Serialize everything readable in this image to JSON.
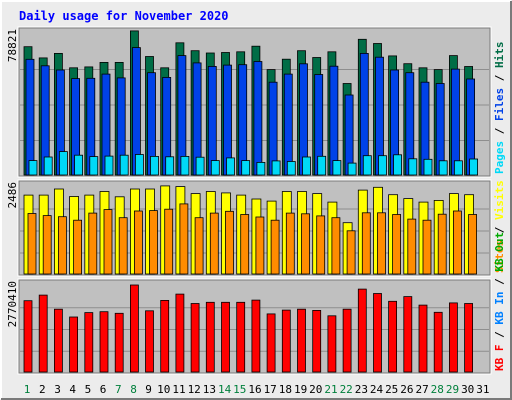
{
  "title": "Daily usage for November 2020",
  "x_labels": [
    "1",
    "2",
    "3",
    "4",
    "5",
    "6",
    "7",
    "8",
    "9",
    "10",
    "11",
    "12",
    "13",
    "14",
    "15",
    "16",
    "17",
    "18",
    "19",
    "20",
    "21",
    "22",
    "23",
    "24",
    "25",
    "26",
    "27",
    "28",
    "29",
    "30",
    "31"
  ],
  "weekend_days": [
    1,
    7,
    8,
    14,
    15,
    21,
    22,
    28,
    29
  ],
  "colors": {
    "background": "#ececec",
    "frame_light": "#ffffff",
    "frame_dark": "#7a7a7a",
    "plot_bg": "#c0c0c0",
    "grid": "#8e8e8e",
    "title_text": "#0000ff",
    "hits": "#006d46",
    "files": "#0042e8",
    "pages": "#00d9f7",
    "visits": "#ffff00",
    "sites": "#ff8c00",
    "kbout": "#00aa00",
    "kbin": "#0080ff",
    "kbf": "#ff0000",
    "weekday_label": "#000000",
    "weekend_label": "#00803c"
  },
  "chart_data": [
    {
      "type": "bar",
      "ymax_label": "78821",
      "ylim": [
        0,
        78821
      ],
      "legend": [
        "Pages",
        "Files",
        "Hits"
      ],
      "categories": [
        "1",
        "2",
        "3",
        "4",
        "5",
        "6",
        "7",
        "8",
        "9",
        "10",
        "11",
        "12",
        "13",
        "14",
        "15",
        "16",
        "17",
        "18",
        "19",
        "20",
        "21",
        "22",
        "23",
        "24",
        "25",
        "26",
        "27",
        "28",
        "29",
        "30",
        "31"
      ],
      "series": [
        {
          "name": "Hits",
          "values": [
            71200,
            65000,
            67500,
            59500,
            60000,
            62500,
            62500,
            80000,
            65800,
            59500,
            73400,
            69000,
            67700,
            68000,
            68400,
            71500,
            58500,
            64300,
            69000,
            65200,
            68400,
            50800,
            75300,
            73000,
            66100,
            61800,
            59500,
            58500,
            66300,
            60200,
            0
          ]
        },
        {
          "name": "Files",
          "values": [
            64200,
            60600,
            58300,
            53500,
            53700,
            56000,
            53900,
            70700,
            56800,
            54200,
            66300,
            62200,
            60300,
            61000,
            61200,
            63000,
            51500,
            56000,
            61700,
            55800,
            60400,
            44400,
            67500,
            65400,
            58300,
            56800,
            51500,
            50800,
            58800,
            53300,
            0
          ]
        },
        {
          "name": "Pages",
          "values": [
            8000,
            10000,
            13000,
            11000,
            10200,
            10500,
            11000,
            11400,
            10300,
            10100,
            10300,
            9900,
            8000,
            9500,
            8000,
            7000,
            7800,
            7500,
            10000,
            10400,
            8000,
            6600,
            10700,
            10700,
            11200,
            9000,
            8700,
            7900,
            7900,
            8900,
            0
          ]
        }
      ]
    },
    {
      "type": "bar",
      "ymax_label": "2486",
      "ylim": [
        0,
        2486
      ],
      "legend": [
        "Sites",
        "Visits"
      ],
      "categories": [
        "1",
        "2",
        "3",
        "4",
        "5",
        "6",
        "7",
        "8",
        "9",
        "10",
        "11",
        "12",
        "13",
        "14",
        "15",
        "16",
        "17",
        "18",
        "19",
        "20",
        "21",
        "22",
        "23",
        "24",
        "25",
        "26",
        "27",
        "28",
        "29",
        "30",
        "31"
      ],
      "series": [
        {
          "name": "Visits",
          "values": [
            2230,
            2230,
            2400,
            2190,
            2230,
            2330,
            2180,
            2400,
            2400,
            2490,
            2470,
            2270,
            2330,
            2290,
            2230,
            2120,
            2060,
            2330,
            2330,
            2270,
            2030,
            1450,
            2370,
            2450,
            2240,
            2130,
            2030,
            2080,
            2270,
            2240,
            0
          ]
        },
        {
          "name": "Sites",
          "values": [
            1710,
            1650,
            1620,
            1520,
            1720,
            1820,
            1590,
            1780,
            1790,
            1830,
            1980,
            1590,
            1720,
            1770,
            1680,
            1610,
            1520,
            1720,
            1700,
            1640,
            1590,
            1220,
            1730,
            1730,
            1680,
            1550,
            1520,
            1690,
            1780,
            1680,
            0
          ]
        }
      ]
    },
    {
      "type": "bar",
      "ymax_label": "2770410",
      "ylim": [
        0,
        2770410
      ],
      "legend": [
        "KB F",
        "KB In",
        "KB Out"
      ],
      "categories": [
        "1",
        "2",
        "3",
        "4",
        "5",
        "6",
        "7",
        "8",
        "9",
        "10",
        "11",
        "12",
        "13",
        "14",
        "15",
        "16",
        "17",
        "18",
        "19",
        "20",
        "21",
        "22",
        "23",
        "24",
        "25",
        "26",
        "27",
        "28",
        "29",
        "30",
        "31"
      ],
      "series": [
        {
          "name": "KB F",
          "values": [
            2270000,
            2450000,
            2000000,
            1750000,
            1890000,
            1920000,
            1870000,
            2770000,
            1950000,
            2280000,
            2480000,
            2180000,
            2220000,
            2220000,
            2220000,
            2290000,
            1850000,
            1970000,
            2000000,
            1960000,
            1790000,
            2000000,
            2640000,
            2500000,
            2250000,
            2400000,
            2130000,
            1900000,
            2200000,
            2180000,
            0
          ]
        }
      ]
    }
  ]
}
